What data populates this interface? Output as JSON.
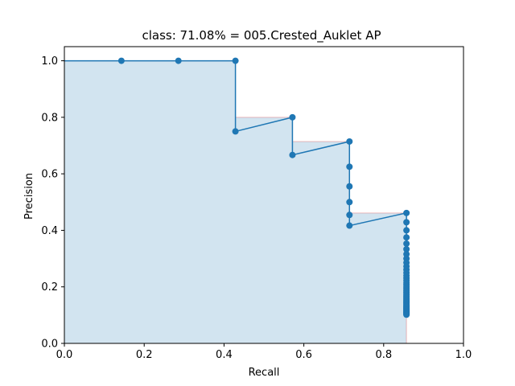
{
  "chart_data": {
    "type": "line",
    "title": "class: 71.08% = 005.Crested_Auklet AP",
    "xlabel": "Recall",
    "ylabel": "Precision",
    "xlim": [
      0.0,
      1.0
    ],
    "ylim": [
      0.0,
      1.05
    ],
    "xticks": [
      "0.0",
      "0.2",
      "0.4",
      "0.6",
      "0.8",
      "1.0"
    ],
    "yticks": [
      "0.0",
      "0.2",
      "0.4",
      "0.6",
      "0.8",
      "1.0"
    ],
    "grid": false,
    "legend": "none",
    "colors": {
      "line": "#1f77b4",
      "fill": "#1f77b4",
      "interp": "#d62728"
    },
    "series": [
      {
        "x": [
          0.0,
          0.1429,
          0.2857,
          0.4286,
          0.4286,
          0.5714,
          0.5714,
          0.7143,
          0.7143,
          0.7143,
          0.7143,
          0.7143,
          0.7143,
          0.8571,
          0.8571,
          0.8571,
          0.8571,
          0.8571,
          0.8571,
          0.8571,
          0.8571,
          0.8571,
          0.8571,
          0.8571,
          0.8571,
          0.8571,
          0.8571,
          0.8571,
          0.8571,
          0.8571,
          0.8571,
          0.8571,
          0.8571,
          0.8571,
          0.8571,
          0.8571,
          0.8571,
          0.8571,
          0.8571,
          0.8571,
          0.8571,
          0.8571,
          0.8571,
          0.8571,
          0.8571,
          0.8571,
          0.8571,
          0.8571,
          0.8571,
          0.8571,
          0.8571,
          0.8571,
          0.8571,
          0.8571,
          0.8571,
          0.8571,
          0.8571,
          0.8571,
          0.8571,
          0.8571
        ],
        "y": [
          1.0,
          1.0,
          1.0,
          1.0,
          0.75,
          0.8,
          0.6667,
          0.7143,
          0.625,
          0.5556,
          0.5,
          0.4545,
          0.4167,
          0.4615,
          0.4286,
          0.4,
          0.375,
          0.3529,
          0.3333,
          0.3158,
          0.3,
          0.2857,
          0.2727,
          0.2609,
          0.25,
          0.24,
          0.2308,
          0.2222,
          0.2143,
          0.2069,
          0.2,
          0.1935,
          0.1875,
          0.1818,
          0.1765,
          0.1714,
          0.1667,
          0.1622,
          0.1579,
          0.1538,
          0.15,
          0.1463,
          0.1429,
          0.1395,
          0.1364,
          0.1333,
          0.1304,
          0.1277,
          0.125,
          0.1224,
          0.12,
          0.1176,
          0.1154,
          0.1132,
          0.1111,
          0.1091,
          0.1071,
          0.1053,
          0.1034,
          0.1017
        ],
        "markers": true
      }
    ],
    "interpolated_envelope": {
      "x": [
        0.0,
        0.4286,
        0.4286,
        0.5714,
        0.5714,
        0.7143,
        0.7143,
        0.8571,
        0.8571
      ],
      "y": [
        1.0,
        1.0,
        0.8,
        0.8,
        0.7143,
        0.7143,
        0.4615,
        0.4615,
        0.0
      ]
    }
  }
}
